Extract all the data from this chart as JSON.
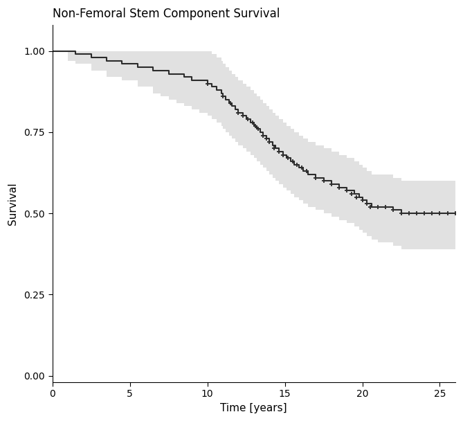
{
  "title": "Non-Femoral Stem Component Survival",
  "xlabel": "Time [years]",
  "ylabel": "Survival",
  "xlim": [
    0,
    26
  ],
  "ylim": [
    -0.02,
    1.08
  ],
  "xticks": [
    0,
    5,
    10,
    15,
    20,
    25
  ],
  "yticks": [
    0.0,
    0.25,
    0.5,
    0.75,
    1.0
  ],
  "line_color": "#2b2b2b",
  "ci_color": "#d8d8d8",
  "ci_alpha": 0.75,
  "background_color": "#ffffff",
  "step_times": [
    0.0,
    1.0,
    1.5,
    2.5,
    3.5,
    4.5,
    5.5,
    6.5,
    7.0,
    7.5,
    8.0,
    8.5,
    9.0,
    9.5,
    10.0,
    10.3,
    10.6,
    10.9,
    11.0,
    11.2,
    11.4,
    11.6,
    11.8,
    12.0,
    12.3,
    12.5,
    12.8,
    13.0,
    13.2,
    13.4,
    13.6,
    13.8,
    14.0,
    14.2,
    14.4,
    14.6,
    14.9,
    15.1,
    15.4,
    15.6,
    15.9,
    16.2,
    16.5,
    17.0,
    17.5,
    18.0,
    18.5,
    19.0,
    19.5,
    19.8,
    20.0,
    20.3,
    20.6,
    21.0,
    21.5,
    22.0,
    22.5,
    23.0,
    23.5,
    24.0,
    24.5,
    25.0,
    25.5,
    26.0
  ],
  "step_surv": [
    1.0,
    1.0,
    0.99,
    0.98,
    0.97,
    0.96,
    0.95,
    0.94,
    0.94,
    0.93,
    0.93,
    0.92,
    0.91,
    0.91,
    0.9,
    0.89,
    0.88,
    0.87,
    0.86,
    0.85,
    0.84,
    0.83,
    0.82,
    0.81,
    0.8,
    0.79,
    0.78,
    0.77,
    0.76,
    0.75,
    0.74,
    0.73,
    0.72,
    0.71,
    0.7,
    0.69,
    0.68,
    0.67,
    0.66,
    0.65,
    0.64,
    0.63,
    0.62,
    0.61,
    0.6,
    0.59,
    0.58,
    0.57,
    0.56,
    0.55,
    0.54,
    0.53,
    0.52,
    0.52,
    0.52,
    0.51,
    0.5,
    0.5,
    0.5,
    0.5,
    0.5,
    0.5,
    0.5,
    0.5
  ],
  "ci_upper": [
    1.0,
    1.0,
    1.0,
    1.0,
    1.0,
    1.0,
    1.0,
    1.0,
    1.0,
    1.0,
    1.0,
    1.0,
    1.0,
    1.0,
    1.0,
    0.99,
    0.98,
    0.97,
    0.96,
    0.95,
    0.94,
    0.93,
    0.92,
    0.91,
    0.9,
    0.89,
    0.88,
    0.87,
    0.86,
    0.85,
    0.84,
    0.83,
    0.82,
    0.81,
    0.8,
    0.79,
    0.78,
    0.77,
    0.76,
    0.75,
    0.74,
    0.73,
    0.72,
    0.71,
    0.7,
    0.69,
    0.68,
    0.67,
    0.66,
    0.65,
    0.64,
    0.63,
    0.62,
    0.62,
    0.62,
    0.61,
    0.6,
    0.6,
    0.6,
    0.6,
    0.6,
    0.6,
    0.6,
    0.6
  ],
  "ci_lower": [
    1.0,
    0.97,
    0.96,
    0.94,
    0.92,
    0.91,
    0.89,
    0.87,
    0.86,
    0.85,
    0.84,
    0.83,
    0.82,
    0.81,
    0.8,
    0.79,
    0.78,
    0.77,
    0.76,
    0.75,
    0.74,
    0.73,
    0.72,
    0.71,
    0.7,
    0.69,
    0.68,
    0.67,
    0.66,
    0.65,
    0.64,
    0.63,
    0.62,
    0.61,
    0.6,
    0.59,
    0.58,
    0.57,
    0.56,
    0.55,
    0.54,
    0.53,
    0.52,
    0.51,
    0.5,
    0.49,
    0.48,
    0.47,
    0.46,
    0.45,
    0.44,
    0.43,
    0.42,
    0.41,
    0.41,
    0.4,
    0.39,
    0.39,
    0.39,
    0.39,
    0.39,
    0.39,
    0.39,
    0.39
  ],
  "censor_times": [
    10.0,
    11.0,
    11.5,
    12.0,
    12.3,
    12.6,
    12.9,
    13.1,
    13.3,
    13.6,
    13.8,
    14.0,
    14.3,
    14.6,
    14.9,
    15.2,
    15.5,
    15.8,
    16.1,
    16.4,
    17.0,
    17.5,
    18.0,
    18.5,
    19.0,
    19.3,
    19.6,
    20.0,
    20.3,
    20.5,
    21.0,
    21.5,
    22.0,
    22.5,
    23.0,
    23.5,
    24.0,
    24.5,
    25.0,
    25.5,
    26.0
  ],
  "censor_surv": [
    0.9,
    0.86,
    0.84,
    0.81,
    0.8,
    0.79,
    0.78,
    0.77,
    0.76,
    0.74,
    0.73,
    0.72,
    0.7,
    0.69,
    0.68,
    0.67,
    0.66,
    0.65,
    0.64,
    0.63,
    0.61,
    0.6,
    0.59,
    0.58,
    0.57,
    0.56,
    0.55,
    0.54,
    0.53,
    0.52,
    0.52,
    0.52,
    0.51,
    0.5,
    0.5,
    0.5,
    0.5,
    0.5,
    0.5,
    0.5,
    0.5
  ]
}
